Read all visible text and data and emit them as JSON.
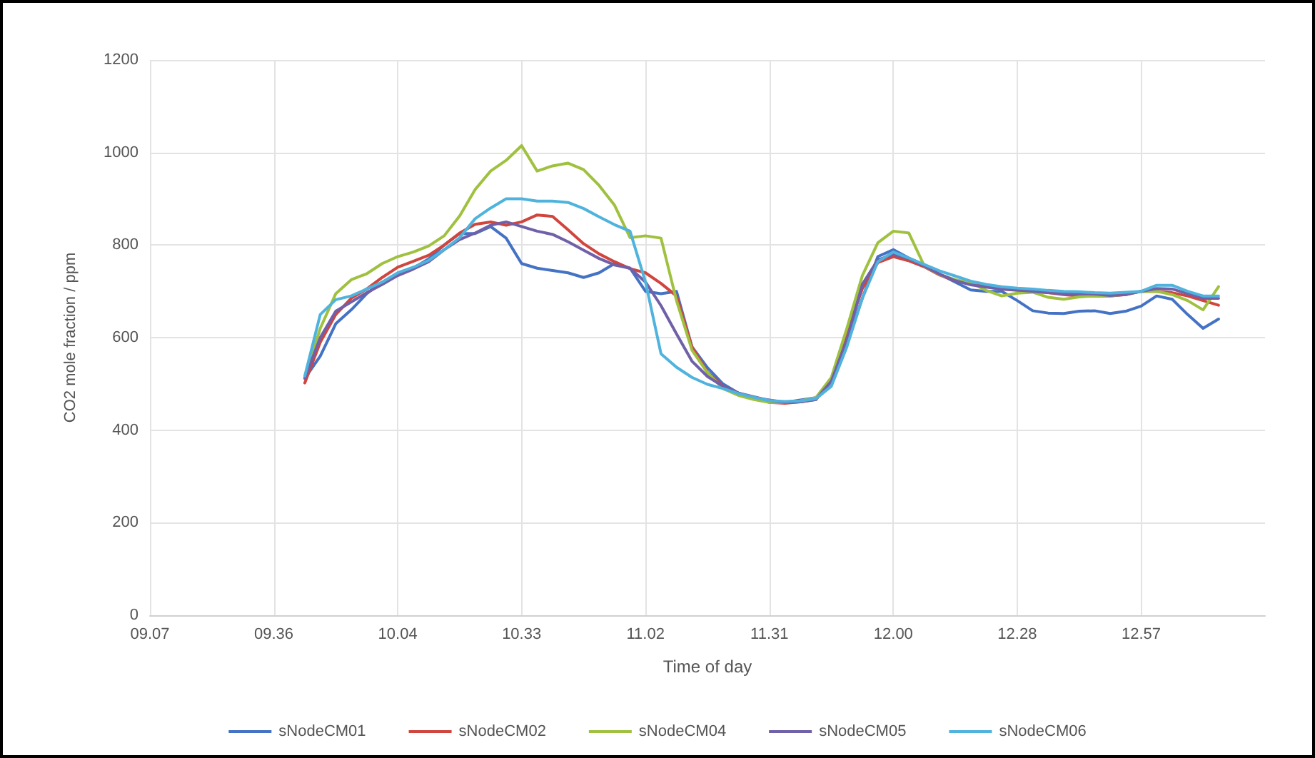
{
  "chart_data": {
    "type": "line",
    "xlabel": "Time of day",
    "ylabel": "CO2 mole fraction / ppm",
    "categories": [
      "09.07",
      null,
      null,
      null,
      null,
      null,
      null,
      null,
      "09.36",
      null,
      null,
      null,
      null,
      null,
      null,
      null,
      "10.04",
      null,
      null,
      null,
      null,
      null,
      null,
      null,
      "10.33",
      null,
      null,
      null,
      null,
      null,
      null,
      null,
      "11.02",
      null,
      null,
      null,
      null,
      null,
      null,
      null,
      "11.31",
      null,
      null,
      null,
      null,
      null,
      null,
      null,
      "12.00",
      null,
      null,
      null,
      null,
      null,
      null,
      null,
      "12.28",
      null,
      null,
      null,
      null,
      null,
      null,
      null,
      "12.57",
      null,
      null,
      null,
      null,
      null,
      null,
      null,
      null
    ],
    "series": [
      {
        "name": "sNodeCM01",
        "color": "#4472c4",
        "values": [
          null,
          null,
          null,
          null,
          null,
          null,
          null,
          null,
          null,
          null,
          512,
          560,
          630,
          660,
          695,
          720,
          735,
          750,
          770,
          800,
          825,
          825,
          840,
          815,
          760,
          750,
          745,
          740,
          730,
          740,
          760,
          750,
          700,
          695,
          700,
          580,
          535,
          500,
          480,
          470,
          465,
          460,
          465,
          470,
          505,
          590,
          685,
          775,
          790,
          772,
          757,
          737,
          720,
          703,
          700,
          700,
          680,
          658,
          653,
          652,
          657,
          658,
          652,
          657,
          668,
          690,
          683,
          650,
          620,
          640,
          null,
          null,
          null
        ]
      },
      {
        "name": "sNodeCM02",
        "color": "#d0453e",
        "values": [
          null,
          null,
          null,
          null,
          null,
          null,
          null,
          null,
          null,
          null,
          502,
          590,
          650,
          685,
          705,
          730,
          752,
          765,
          778,
          800,
          826,
          845,
          850,
          843,
          850,
          865,
          862,
          833,
          803,
          781,
          764,
          749,
          740,
          717,
          690,
          580,
          525,
          495,
          480,
          469,
          460,
          458,
          461,
          466,
          512,
          610,
          706,
          762,
          775,
          766,
          753,
          735,
          723,
          716,
          710,
          705,
          702,
          700,
          697,
          693,
          690,
          690,
          690,
          693,
          700,
          700,
          697,
          690,
          680,
          670,
          null,
          null,
          null
        ]
      },
      {
        "name": "sNodeCM04",
        "color": "#9fc13f",
        "values": [
          null,
          null,
          null,
          null,
          null,
          null,
          null,
          null,
          null,
          null,
          515,
          620,
          695,
          725,
          738,
          760,
          775,
          785,
          798,
          820,
          863,
          920,
          960,
          983,
          1015,
          960,
          971,
          977,
          963,
          929,
          886,
          816,
          820,
          815,
          680,
          573,
          524,
          490,
          475,
          466,
          460,
          460,
          463,
          470,
          514,
          620,
          734,
          805,
          830,
          826,
          755,
          736,
          725,
          719,
          702,
          690,
          696,
          698,
          687,
          683,
          688,
          690,
          690,
          694,
          700,
          700,
          693,
          680,
          660,
          710,
          null,
          null,
          null
        ]
      },
      {
        "name": "sNodeCM05",
        "color": "#7060a8",
        "values": [
          null,
          null,
          null,
          null,
          null,
          null,
          null,
          null,
          null,
          null,
          512,
          600,
          657,
          677,
          697,
          715,
          734,
          748,
          764,
          790,
          812,
          826,
          843,
          850,
          840,
          830,
          823,
          807,
          789,
          771,
          757,
          750,
          720,
          669,
          608,
          549,
          516,
          495,
          480,
          472,
          464,
          460,
          461,
          466,
          506,
          595,
          715,
          768,
          780,
          771,
          755,
          737,
          723,
          714,
          709,
          705,
          703,
          700,
          697,
          695,
          695,
          694,
          691,
          693,
          700,
          706,
          705,
          695,
          685,
          685,
          null,
          null,
          null
        ]
      },
      {
        "name": "sNodeCM06",
        "color": "#4fb3dd",
        "values": [
          null,
          null,
          null,
          null,
          null,
          null,
          null,
          null,
          null,
          null,
          517,
          650,
          682,
          690,
          705,
          720,
          740,
          752,
          767,
          790,
          816,
          857,
          880,
          900,
          900,
          895,
          895,
          892,
          879,
          861,
          844,
          830,
          720,
          565,
          536,
          514,
          499,
          490,
          479,
          471,
          464,
          462,
          463,
          468,
          495,
          580,
          685,
          764,
          785,
          772,
          758,
          744,
          733,
          722,
          715,
          710,
          707,
          705,
          702,
          700,
          699,
          697,
          696,
          698,
          700,
          713,
          713,
          700,
          690,
          690,
          null,
          null,
          null
        ]
      }
    ],
    "ylim": [
      0,
      1200
    ],
    "yticks": [
      0,
      200,
      400,
      600,
      800,
      1000,
      1200
    ],
    "grid": true,
    "legend": "bottom",
    "marker": "none",
    "line_style": "solid"
  }
}
